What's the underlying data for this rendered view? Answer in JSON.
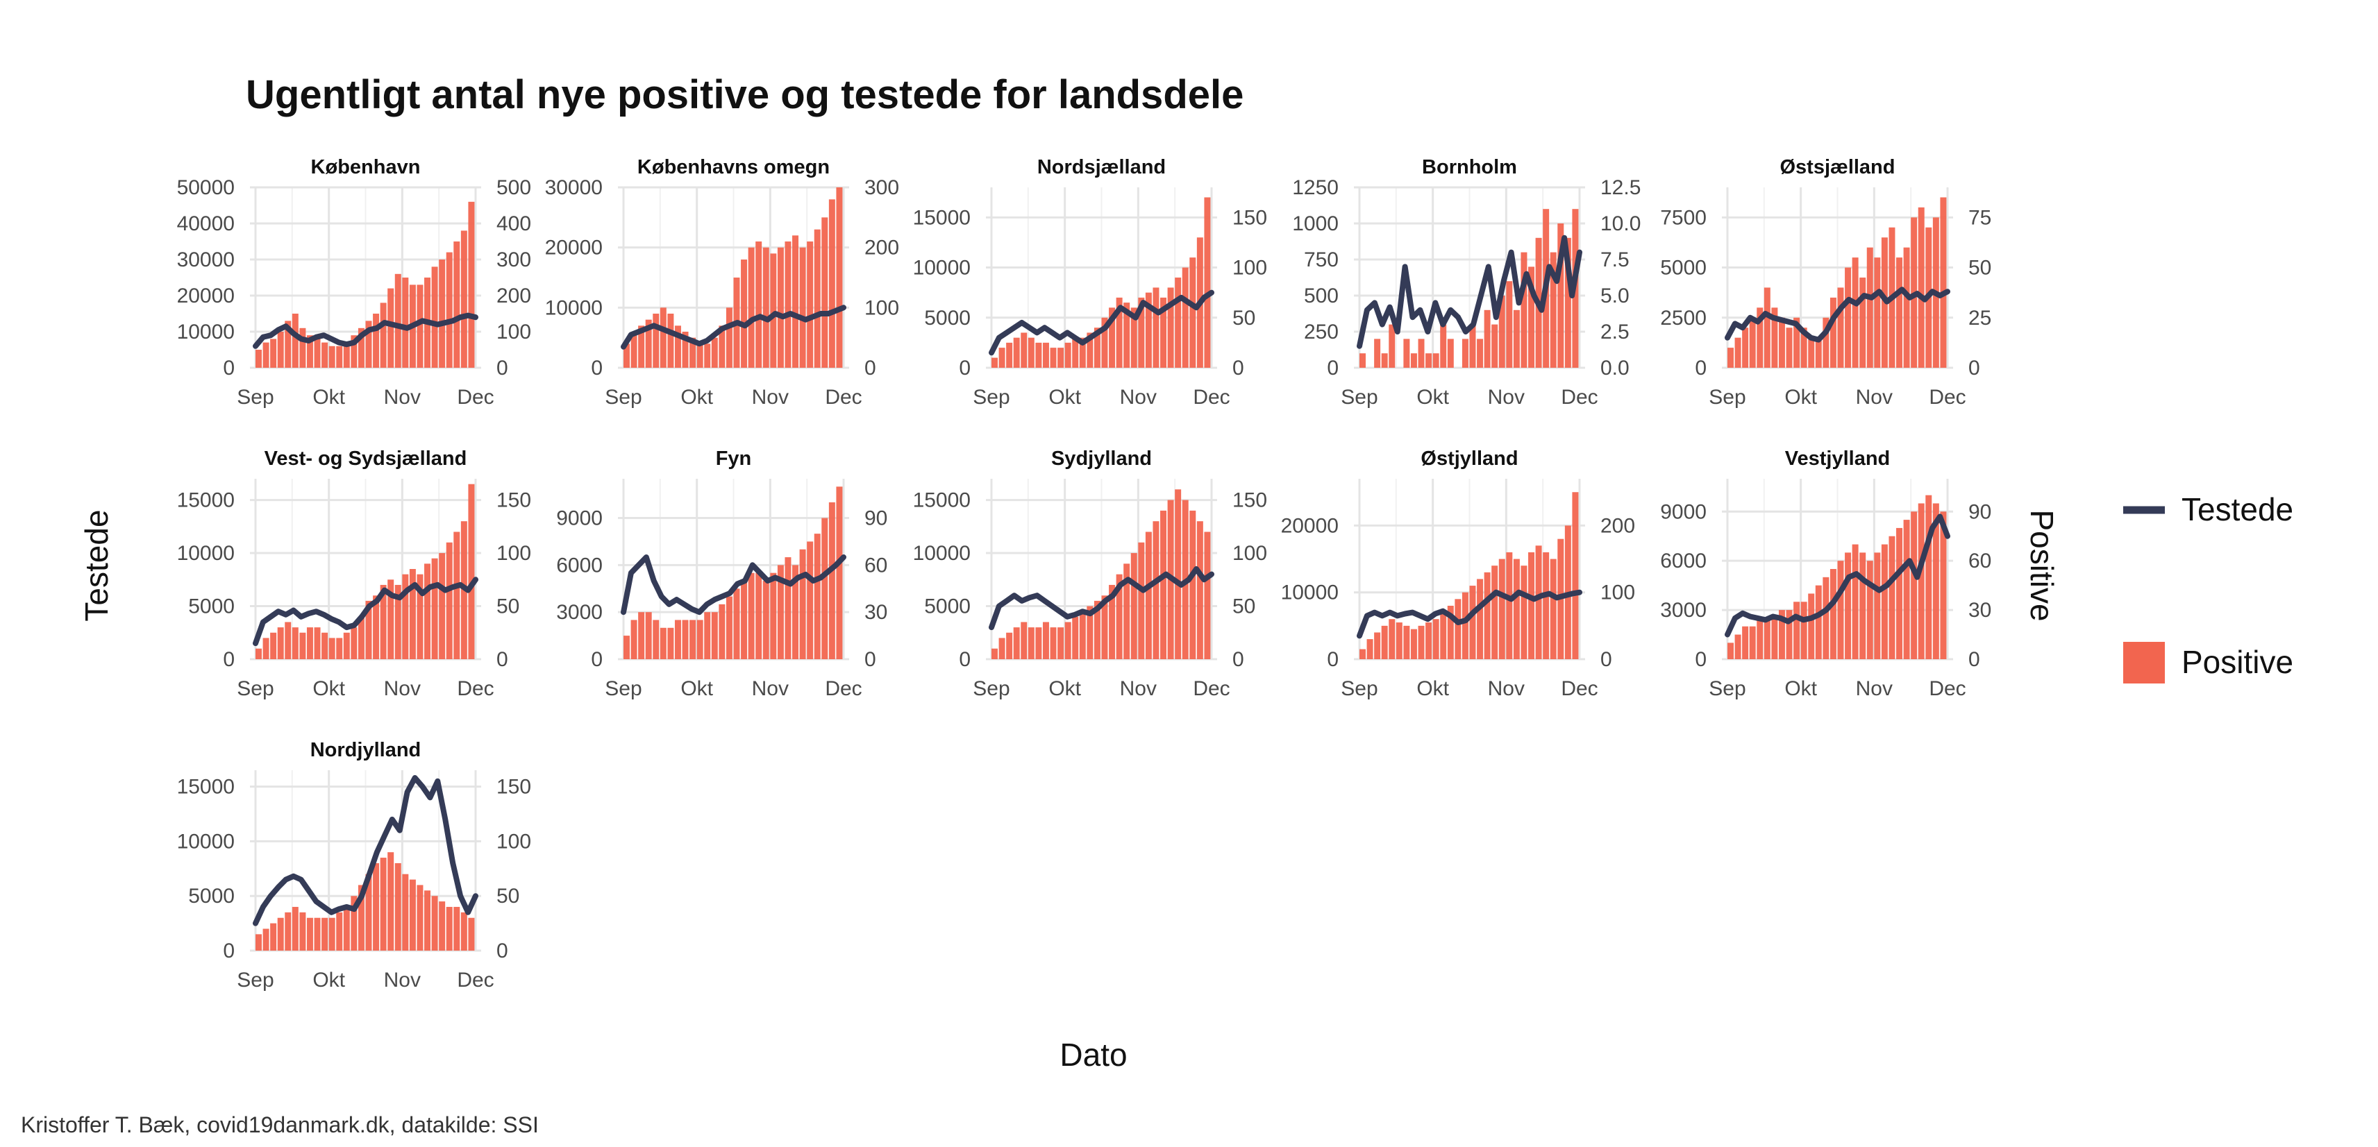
{
  "chart_data": {
    "type": "bar",
    "title": "Ugentligt antal nye positive og testede for landsdele",
    "xlabel": "Dato",
    "ylabel_left": "Testede",
    "ylabel_right": "Positive",
    "caption": "Kristoffer T. Bæk, covid19danmark.dk, datakilde: SSI",
    "x_ticks": [
      "Sep",
      "Okt",
      "Nov",
      "Dec"
    ],
    "grid": true,
    "legend": {
      "position": "right",
      "items": [
        {
          "label": "Testede",
          "type": "line",
          "color": "#343b57"
        },
        {
          "label": "Positive",
          "type": "bar",
          "color": "#f2654f"
        }
      ]
    },
    "colors": {
      "testede": "#343b57",
      "positive": "#f2654f"
    },
    "panels": [
      {
        "name": "København",
        "left_ticks": [
          "0",
          "10000",
          "20000",
          "30000",
          "40000",
          "50000"
        ],
        "left_max": 50000,
        "right_ticks": [
          "0",
          "100",
          "200",
          "300",
          "400",
          "500"
        ],
        "right_max": 500,
        "testede": [
          6000,
          8500,
          9000,
          10500,
          11500,
          9500,
          8000,
          7500,
          8500,
          9000,
          8000,
          7000,
          6500,
          7000,
          9000,
          10500,
          11000,
          12500,
          12000,
          11500,
          11000,
          12000,
          13000,
          12500,
          12000,
          12500,
          13000,
          14000,
          14500,
          14000
        ],
        "positive": [
          50,
          70,
          80,
          100,
          130,
          150,
          110,
          90,
          80,
          70,
          60,
          60,
          70,
          90,
          110,
          130,
          150,
          180,
          220,
          260,
          250,
          230,
          230,
          250,
          280,
          300,
          320,
          350,
          380,
          460
        ]
      },
      {
        "name": "Københavns omegn",
        "left_ticks": [
          "0",
          "10000",
          "20000",
          "30000"
        ],
        "left_max": 30000,
        "right_ticks": [
          "0",
          "100",
          "200",
          "300"
        ],
        "right_max": 300,
        "testede": [
          3500,
          5500,
          6000,
          6500,
          7000,
          6500,
          6000,
          5500,
          5000,
          4500,
          4000,
          4500,
          5500,
          6500,
          7000,
          7500,
          7000,
          8000,
          8500,
          8000,
          9000,
          8500,
          9000,
          8500,
          8000,
          8500,
          9000,
          9000,
          9500,
          10000
        ],
        "positive": [
          40,
          60,
          70,
          80,
          90,
          100,
          90,
          70,
          60,
          50,
          40,
          40,
          50,
          70,
          100,
          150,
          180,
          200,
          210,
          200,
          190,
          200,
          210,
          220,
          200,
          210,
          230,
          250,
          280,
          300
        ]
      },
      {
        "name": "Nordsjælland",
        "left_ticks": [
          "0",
          "5000",
          "10000",
          "15000"
        ],
        "left_max": 18000,
        "right_ticks": [
          "0",
          "50",
          "100",
          "150"
        ],
        "right_max": 180,
        "testede": [
          1500,
          3000,
          3500,
          4000,
          4500,
          4000,
          3500,
          4000,
          3500,
          3000,
          3500,
          3000,
          2500,
          3000,
          3500,
          4000,
          5000,
          6000,
          5500,
          5000,
          6500,
          6000,
          5500,
          6000,
          6500,
          7000,
          6500,
          6000,
          7000,
          7500
        ],
        "positive": [
          10,
          20,
          25,
          30,
          35,
          30,
          25,
          25,
          20,
          20,
          25,
          30,
          30,
          35,
          40,
          50,
          60,
          70,
          65,
          60,
          70,
          75,
          80,
          70,
          80,
          90,
          100,
          110,
          130,
          170
        ]
      },
      {
        "name": "Bornholm",
        "left_ticks": [
          "0",
          "250",
          "500",
          "750",
          "1000",
          "1250"
        ],
        "left_max": 1250,
        "right_ticks": [
          "0.0",
          "2.5",
          "5.0",
          "7.5",
          "10.0",
          "12.5"
        ],
        "right_max": 12.5,
        "testede": [
          150,
          400,
          450,
          300,
          420,
          250,
          700,
          350,
          400,
          250,
          450,
          300,
          400,
          350,
          250,
          300,
          500,
          700,
          350,
          600,
          800,
          450,
          650,
          500,
          400,
          700,
          600,
          900,
          500,
          800
        ],
        "positive": [
          1,
          0,
          2,
          1,
          3,
          0,
          2,
          1,
          2,
          1,
          1,
          3,
          2,
          0,
          2,
          3,
          2,
          4,
          3,
          5,
          6,
          4,
          8,
          7,
          9,
          11,
          8,
          10,
          9,
          11
        ]
      },
      {
        "name": "Østsjælland",
        "left_ticks": [
          "0",
          "2500",
          "5000",
          "7500"
        ],
        "left_max": 9000,
        "right_ticks": [
          "0",
          "25",
          "50",
          "75"
        ],
        "right_max": 90,
        "testede": [
          1500,
          2200,
          2000,
          2500,
          2300,
          2700,
          2500,
          2400,
          2300,
          2200,
          1800,
          1500,
          1400,
          1800,
          2500,
          3000,
          3400,
          3200,
          3600,
          3500,
          3800,
          3300,
          3600,
          3900,
          3500,
          3700,
          3400,
          3800,
          3600,
          3800
        ],
        "positive": [
          10,
          15,
          20,
          25,
          30,
          40,
          30,
          25,
          20,
          25,
          20,
          15,
          15,
          25,
          35,
          40,
          50,
          55,
          45,
          60,
          55,
          65,
          70,
          55,
          60,
          75,
          80,
          70,
          75,
          85
        ]
      },
      {
        "name": "Vest- og Sydsjælland",
        "left_ticks": [
          "0",
          "5000",
          "10000",
          "15000"
        ],
        "left_max": 17000,
        "right_ticks": [
          "0",
          "50",
          "100",
          "150"
        ],
        "right_max": 170,
        "testede": [
          1500,
          3500,
          4000,
          4500,
          4200,
          4600,
          4000,
          4300,
          4500,
          4200,
          3800,
          3500,
          3000,
          3200,
          4000,
          5000,
          5500,
          6500,
          6000,
          5800,
          6500,
          7000,
          6200,
          6800,
          7000,
          6500,
          6800,
          7000,
          6500,
          7500
        ],
        "positive": [
          10,
          20,
          25,
          30,
          35,
          30,
          25,
          30,
          30,
          25,
          20,
          20,
          25,
          30,
          40,
          55,
          60,
          70,
          75,
          70,
          80,
          85,
          80,
          90,
          95,
          100,
          110,
          120,
          130,
          165
        ]
      },
      {
        "name": "Fyn",
        "left_ticks": [
          "0",
          "3000",
          "6000",
          "9000"
        ],
        "left_max": 11500,
        "right_ticks": [
          "0",
          "30",
          "60",
          "90"
        ],
        "right_max": 115,
        "testede": [
          3000,
          5500,
          6000,
          6500,
          5000,
          4000,
          3500,
          3800,
          3500,
          3200,
          3000,
          3500,
          3800,
          4000,
          4200,
          4800,
          5000,
          6000,
          5500,
          5000,
          5200,
          5000,
          4800,
          5200,
          5400,
          5000,
          5200,
          5600,
          6000,
          6500
        ],
        "positive": [
          15,
          25,
          30,
          30,
          25,
          20,
          20,
          25,
          25,
          25,
          25,
          30,
          30,
          35,
          40,
          45,
          50,
          55,
          55,
          50,
          55,
          60,
          65,
          60,
          70,
          75,
          80,
          90,
          100,
          110
        ]
      },
      {
        "name": "Sydjylland",
        "left_ticks": [
          "0",
          "5000",
          "10000",
          "15000"
        ],
        "left_max": 17000,
        "right_ticks": [
          "0",
          "50",
          "100",
          "150"
        ],
        "right_max": 170,
        "testede": [
          3000,
          5000,
          5500,
          6000,
          5500,
          5800,
          6000,
          5500,
          5000,
          4500,
          4000,
          4200,
          4500,
          4300,
          4800,
          5500,
          6000,
          7000,
          7500,
          7000,
          6500,
          7000,
          7500,
          8000,
          7500,
          7000,
          7500,
          8500,
          7500,
          8000
        ],
        "positive": [
          10,
          20,
          25,
          30,
          35,
          30,
          30,
          35,
          30,
          30,
          35,
          40,
          45,
          50,
          55,
          60,
          70,
          80,
          90,
          100,
          110,
          120,
          130,
          140,
          150,
          160,
          150,
          140,
          130,
          120
        ]
      },
      {
        "name": "Østjylland",
        "left_ticks": [
          "0",
          "10000",
          "20000"
        ],
        "left_max": 27000,
        "right_ticks": [
          "0",
          "100",
          "200"
        ],
        "right_max": 270,
        "testede": [
          3500,
          6500,
          7000,
          6500,
          7000,
          6500,
          6800,
          7000,
          6500,
          6000,
          6800,
          7200,
          6500,
          5500,
          5800,
          7000,
          8000,
          9000,
          10000,
          9500,
          9000,
          10000,
          9500,
          9000,
          9500,
          9800,
          9200,
          9500,
          9800,
          10000
        ],
        "positive": [
          15,
          30,
          40,
          50,
          60,
          55,
          50,
          45,
          50,
          55,
          60,
          70,
          80,
          90,
          100,
          110,
          120,
          130,
          140,
          150,
          160,
          150,
          140,
          160,
          170,
          160,
          150,
          180,
          200,
          250
        ]
      },
      {
        "name": "Vestjylland",
        "left_ticks": [
          "0",
          "3000",
          "6000",
          "9000"
        ],
        "left_max": 11000,
        "right_ticks": [
          "0",
          "30",
          "60",
          "90"
        ],
        "right_max": 110,
        "testede": [
          1500,
          2500,
          2800,
          2600,
          2500,
          2400,
          2600,
          2500,
          2300,
          2600,
          2400,
          2500,
          2700,
          3000,
          3500,
          4200,
          5000,
          5200,
          4800,
          4500,
          4200,
          4500,
          5000,
          5500,
          6000,
          5000,
          6500,
          8000,
          8700,
          7500
        ],
        "positive": [
          10,
          15,
          20,
          20,
          25,
          25,
          25,
          30,
          30,
          35,
          35,
          40,
          45,
          50,
          55,
          60,
          65,
          70,
          65,
          60,
          65,
          70,
          75,
          80,
          85,
          90,
          95,
          100,
          95,
          90
        ]
      },
      {
        "name": "Nordjylland",
        "left_ticks": [
          "0",
          "5000",
          "10000",
          "15000"
        ],
        "left_max": 16500,
        "right_ticks": [
          "0",
          "50",
          "100",
          "150"
        ],
        "right_max": 165,
        "testede": [
          2500,
          4000,
          5000,
          5800,
          6500,
          6800,
          6500,
          5500,
          4500,
          4000,
          3500,
          3800,
          4000,
          3800,
          5000,
          7000,
          9000,
          10500,
          12000,
          11000,
          14500,
          15800,
          15000,
          14000,
          15500,
          12000,
          8000,
          5000,
          3500,
          5000
        ],
        "positive": [
          15,
          20,
          25,
          30,
          35,
          40,
          35,
          30,
          30,
          30,
          30,
          35,
          40,
          50,
          60,
          70,
          80,
          85,
          90,
          80,
          70,
          65,
          60,
          55,
          50,
          45,
          40,
          40,
          35,
          30
        ]
      }
    ]
  }
}
